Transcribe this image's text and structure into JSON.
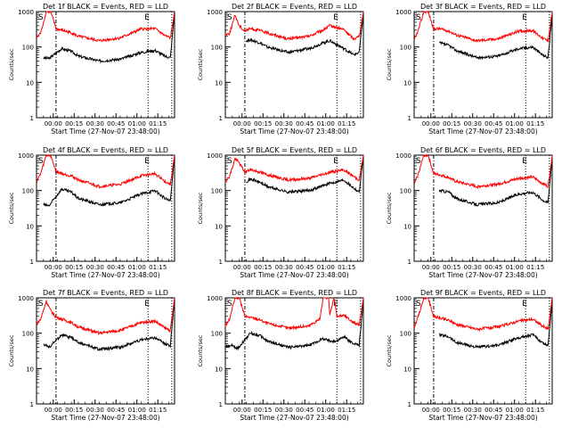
{
  "figure": {
    "ylabel": "Counts/sec",
    "xlabel": "Start Time (27-Nov-07 23:48:00)",
    "xtick_labels": [
      "00:00",
      "00:15",
      "00:30",
      "00:45",
      "01:00",
      "01:15"
    ],
    "ytick_labels": [
      "1",
      "10",
      "100",
      "1000"
    ],
    "marker_s": "S",
    "marker_e": "E",
    "colors": {
      "events": "#000000",
      "lld": "#ff0000",
      "axes": "#000000"
    }
  },
  "chart_data": [
    {
      "type": "line",
      "title": "Det 1f BLACK = Events, RED = LLD",
      "x_start_min": 0,
      "x_end_min": 99,
      "ylim": [
        1,
        1000
      ],
      "yscale": "log",
      "series": [
        {
          "name": "Events",
          "color": "#000000",
          "x": [
            5,
            7,
            9,
            18,
            25,
            30,
            45,
            60,
            75,
            85,
            92,
            96,
            99
          ],
          "y": [
            50,
            48,
            47,
            90,
            75,
            55,
            40,
            45,
            70,
            80,
            55,
            50,
            1000
          ]
        },
        {
          "name": "LLD",
          "color": "#ff0000",
          "x": [
            0,
            3,
            7,
            10,
            12,
            14,
            16,
            18,
            25,
            30,
            45,
            60,
            75,
            85,
            92,
            96,
            99
          ],
          "y": [
            180,
            250,
            1000,
            1000,
            600,
            330,
            310,
            300,
            250,
            200,
            150,
            180,
            320,
            330,
            210,
            180,
            1000
          ]
        }
      ]
    },
    {
      "type": "line",
      "title": "Det 2f BLACK = Events, RED = LLD",
      "x_start_min": 0,
      "x_end_min": 99,
      "ylim": [
        1,
        1000
      ],
      "yscale": "log",
      "series": [
        {
          "name": "Events",
          "color": "#000000",
          "x": [
            15,
            18,
            25,
            30,
            45,
            60,
            70,
            75,
            85,
            92,
            96,
            99
          ],
          "y": [
            150,
            160,
            130,
            100,
            70,
            90,
            130,
            150,
            90,
            60,
            70,
            900
          ]
        },
        {
          "name": "LLD",
          "color": "#ff0000",
          "x": [
            0,
            3,
            7,
            10,
            14,
            18,
            25,
            30,
            45,
            60,
            70,
            75,
            85,
            92,
            96,
            99
          ],
          "y": [
            230,
            240,
            800,
            400,
            280,
            330,
            290,
            250,
            170,
            200,
            300,
            400,
            310,
            170,
            200,
            1000
          ]
        }
      ]
    },
    {
      "type": "line",
      "title": "Det 3f BLACK = Events, RED = LLD",
      "x_start_min": 0,
      "x_end_min": 99,
      "ylim": [
        1,
        1000
      ],
      "yscale": "log",
      "series": [
        {
          "name": "Events",
          "color": "#000000",
          "x": [
            18,
            25,
            30,
            45,
            60,
            75,
            85,
            92,
            96,
            99
          ],
          "y": [
            130,
            110,
            80,
            50,
            55,
            90,
            100,
            60,
            50,
            800
          ]
        },
        {
          "name": "LLD",
          "color": "#ff0000",
          "x": [
            0,
            3,
            7,
            10,
            14,
            18,
            25,
            30,
            45,
            60,
            75,
            85,
            92,
            96,
            99
          ],
          "y": [
            150,
            300,
            1000,
            1000,
            320,
            330,
            280,
            220,
            150,
            170,
            280,
            290,
            180,
            150,
            1000
          ]
        }
      ]
    },
    {
      "type": "line",
      "title": "Det 4f BLACK = Events, RED = LLD",
      "x_start_min": 0,
      "x_end_min": 99,
      "ylim": [
        1,
        1000
      ],
      "yscale": "log",
      "series": [
        {
          "name": "Events",
          "color": "#000000",
          "x": [
            5,
            7,
            9,
            18,
            25,
            30,
            45,
            60,
            75,
            85,
            92,
            96,
            99
          ],
          "y": [
            40,
            38,
            37,
            110,
            90,
            60,
            40,
            45,
            80,
            100,
            60,
            50,
            1000
          ]
        },
        {
          "name": "LLD",
          "color": "#ff0000",
          "x": [
            0,
            3,
            7,
            10,
            14,
            18,
            25,
            30,
            45,
            60,
            75,
            85,
            92,
            96,
            99
          ],
          "y": [
            180,
            300,
            1000,
            1000,
            350,
            300,
            260,
            200,
            130,
            150,
            260,
            300,
            180,
            150,
            1000
          ]
        }
      ]
    },
    {
      "type": "line",
      "title": "Det 5f BLACK = Events, RED = LLD",
      "x_start_min": 0,
      "x_end_min": 99,
      "ylim": [
        1,
        1000
      ],
      "yscale": "log",
      "series": [
        {
          "name": "Events",
          "color": "#000000",
          "x": [
            15,
            18,
            25,
            30,
            45,
            60,
            75,
            85,
            92,
            96,
            99
          ],
          "y": [
            180,
            210,
            170,
            130,
            90,
            100,
            160,
            200,
            120,
            90,
            1000
          ]
        },
        {
          "name": "LLD",
          "color": "#ff0000",
          "x": [
            0,
            3,
            7,
            10,
            14,
            18,
            25,
            30,
            45,
            60,
            75,
            85,
            92,
            96,
            99
          ],
          "y": [
            180,
            250,
            800,
            600,
            330,
            390,
            330,
            280,
            200,
            220,
            330,
            380,
            250,
            200,
            1000
          ]
        }
      ]
    },
    {
      "type": "line",
      "title": "Det 6f BLACK = Events, RED = LLD",
      "x_start_min": 0,
      "x_end_min": 99,
      "ylim": [
        1,
        1000
      ],
      "yscale": "log",
      "series": [
        {
          "name": "Events",
          "color": "#000000",
          "x": [
            18,
            25,
            30,
            45,
            60,
            75,
            85,
            92,
            96,
            99
          ],
          "y": [
            100,
            90,
            60,
            40,
            45,
            80,
            90,
            55,
            45,
            900
          ]
        },
        {
          "name": "LLD",
          "color": "#ff0000",
          "x": [
            0,
            3,
            7,
            10,
            14,
            18,
            25,
            30,
            45,
            60,
            75,
            85,
            92,
            96,
            99
          ],
          "y": [
            150,
            300,
            1000,
            1000,
            300,
            280,
            230,
            180,
            130,
            150,
            220,
            240,
            160,
            130,
            1000
          ]
        }
      ]
    },
    {
      "type": "line",
      "title": "Det 7f BLACK = Events, RED = LLD",
      "x_start_min": 0,
      "x_end_min": 99,
      "ylim": [
        1,
        1000
      ],
      "yscale": "log",
      "series": [
        {
          "name": "Events",
          "color": "#000000",
          "x": [
            5,
            7,
            9,
            18,
            25,
            30,
            45,
            60,
            75,
            85,
            92,
            96,
            99
          ],
          "y": [
            50,
            45,
            40,
            90,
            75,
            55,
            35,
            40,
            65,
            75,
            50,
            45,
            1000
          ]
        },
        {
          "name": "LLD",
          "color": "#ff0000",
          "x": [
            0,
            3,
            7,
            10,
            14,
            18,
            25,
            30,
            45,
            60,
            75,
            85,
            92,
            96,
            99
          ],
          "y": [
            180,
            250,
            800,
            450,
            280,
            250,
            200,
            150,
            100,
            120,
            200,
            220,
            140,
            120,
            1000
          ]
        }
      ]
    },
    {
      "type": "line",
      "title": "Det 8f BLACK = Events, RED = LLD",
      "x_start_min": 0,
      "x_end_min": 99,
      "ylim": [
        1,
        1000
      ],
      "yscale": "log",
      "series": [
        {
          "name": "Events",
          "color": "#000000",
          "x": [
            0,
            5,
            7,
            9,
            18,
            25,
            30,
            45,
            60,
            70,
            75,
            80,
            85,
            92,
            96,
            99
          ],
          "y": [
            40,
            45,
            40,
            38,
            100,
            85,
            60,
            40,
            45,
            70,
            60,
            60,
            80,
            50,
            45,
            900
          ]
        },
        {
          "name": "LLD",
          "color": "#ff0000",
          "x": [
            0,
            3,
            7,
            10,
            14,
            18,
            25,
            30,
            45,
            60,
            68,
            70,
            74,
            75,
            78,
            80,
            85,
            92,
            96,
            99
          ],
          "y": [
            160,
            250,
            1000,
            1000,
            300,
            280,
            240,
            190,
            140,
            160,
            260,
            1000,
            1000,
            330,
            1000,
            300,
            320,
            200,
            170,
            1000
          ]
        }
      ]
    },
    {
      "type": "line",
      "title": "Det 9f BLACK = Events, RED = LLD",
      "x_start_min": 0,
      "x_end_min": 99,
      "ylim": [
        1,
        1000
      ],
      "yscale": "log",
      "series": [
        {
          "name": "Events",
          "color": "#000000",
          "x": [
            18,
            25,
            30,
            45,
            60,
            75,
            85,
            92,
            96,
            99
          ],
          "y": [
            90,
            80,
            55,
            40,
            45,
            75,
            90,
            55,
            45,
            800
          ]
        },
        {
          "name": "LLD",
          "color": "#ff0000",
          "x": [
            0,
            3,
            7,
            10,
            14,
            18,
            25,
            30,
            45,
            60,
            75,
            85,
            92,
            96,
            99
          ],
          "y": [
            150,
            300,
            1000,
            1000,
            300,
            270,
            230,
            180,
            130,
            150,
            220,
            250,
            160,
            130,
            1000
          ]
        }
      ]
    }
  ]
}
